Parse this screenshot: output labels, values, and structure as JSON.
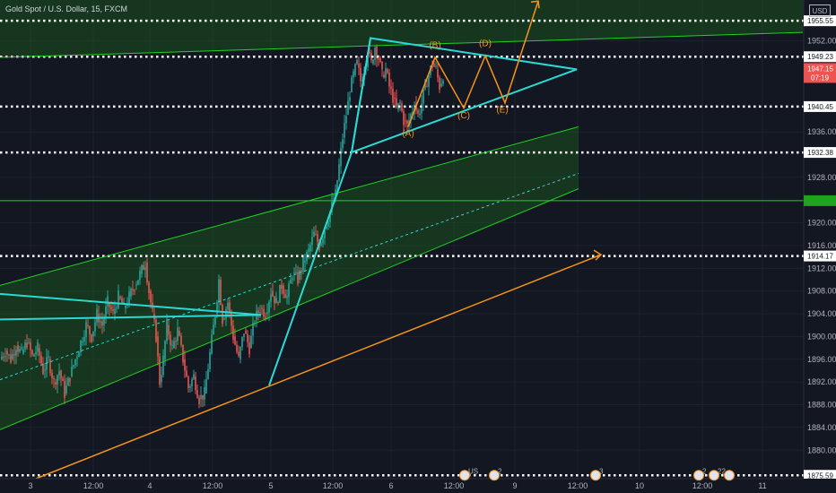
{
  "header": {
    "title": "Gold Spot / U.S. Dollar, 15, FXCM",
    "currency": "USD"
  },
  "colors": {
    "background": "#131722",
    "grid": "#1e222d",
    "candle_up": "#26a69a",
    "candle_down": "#ef5350",
    "channel": "#1fd21f",
    "triangle": "#2bd9d2",
    "orange": "#f7931a",
    "level": "#ffffff",
    "price_tag": "#ef5350",
    "green_tag": "#1fa31f",
    "text": "#b2b5be"
  },
  "chart_data": {
    "type": "candlestick",
    "symbol": "XAUUSD",
    "interval": "15",
    "source": "FXCM",
    "ylim": [
      1875.0,
      1959.2
    ],
    "x_tick_labels": [
      "3",
      "12:00",
      "4",
      "12:00",
      "5",
      "12:00",
      "6",
      "12:00",
      "9",
      "12:00",
      "10",
      "12:00",
      "11"
    ],
    "y_tick_labels": [
      1880.0,
      1884.0,
      1888.0,
      1892.0,
      1896.0,
      1900.0,
      1904.0,
      1908.0,
      1912.0,
      1916.0,
      1920.0,
      1928.0,
      1936.0,
      1952.0
    ],
    "price_levels": [
      1955.55,
      1949.23,
      1940.45,
      1932.38,
      1914.17,
      1875.59
    ],
    "current_price": 1947.15,
    "countdown": "07:19",
    "green_level": 1923.9,
    "close_path": [
      [
        0,
        1896
      ],
      [
        6,
        1897.5
      ],
      [
        12,
        1896
      ],
      [
        18,
        1898.5
      ],
      [
        24,
        1897
      ],
      [
        30,
        1899
      ],
      [
        36,
        1896.5
      ],
      [
        42,
        1898
      ],
      [
        48,
        1894
      ],
      [
        54,
        1896
      ],
      [
        60,
        1892
      ],
      [
        66,
        1894
      ],
      [
        72,
        1890
      ],
      [
        78,
        1893
      ],
      [
        84,
        1896
      ],
      [
        90,
        1899
      ],
      [
        96,
        1902
      ],
      [
        102,
        1900
      ],
      [
        108,
        1904
      ],
      [
        114,
        1902
      ],
      [
        120,
        1906
      ],
      [
        126,
        1904
      ],
      [
        132,
        1907
      ],
      [
        138,
        1905
      ],
      [
        144,
        1907
      ],
      [
        150,
        1909
      ],
      [
        156,
        1911
      ],
      [
        162,
        1913
      ],
      [
        166,
        1908
      ],
      [
        170,
        1904
      ],
      [
        174,
        1900
      ],
      [
        178,
        1892
      ],
      [
        182,
        1896
      ],
      [
        186,
        1902
      ],
      [
        192,
        1898
      ],
      [
        198,
        1901
      ],
      [
        204,
        1896
      ],
      [
        210,
        1891
      ],
      [
        216,
        1893
      ],
      [
        222,
        1889
      ],
      [
        228,
        1890
      ],
      [
        234,
        1897
      ],
      [
        240,
        1904
      ],
      [
        244,
        1910
      ],
      [
        248,
        1903
      ],
      [
        254,
        1906
      ],
      [
        260,
        1900
      ],
      [
        266,
        1896
      ],
      [
        272,
        1901
      ],
      [
        278,
        1898
      ],
      [
        284,
        1903
      ],
      [
        290,
        1905
      ],
      [
        296,
        1904
      ],
      [
        302,
        1908
      ],
      [
        308,
        1906
      ],
      [
        314,
        1909
      ],
      [
        320,
        1907
      ],
      [
        326,
        1911
      ],
      [
        332,
        1910
      ],
      [
        338,
        1913
      ],
      [
        344,
        1915
      ],
      [
        350,
        1918
      ],
      [
        356,
        1916
      ],
      [
        362,
        1919
      ],
      [
        368,
        1922
      ],
      [
        374,
        1925
      ],
      [
        378,
        1930
      ],
      [
        382,
        1935
      ],
      [
        386,
        1939
      ],
      [
        390,
        1943
      ],
      [
        394,
        1946
      ],
      [
        398,
        1948
      ],
      [
        402,
        1945
      ],
      [
        406,
        1947
      ],
      [
        410,
        1950
      ],
      [
        414,
        1948
      ],
      [
        418,
        1951
      ],
      [
        422,
        1949
      ],
      [
        426,
        1946
      ],
      [
        430,
        1947
      ],
      [
        434,
        1944
      ],
      [
        438,
        1942
      ],
      [
        442,
        1940
      ],
      [
        446,
        1941
      ],
      [
        450,
        1938
      ],
      [
        454,
        1937
      ],
      [
        458,
        1939
      ],
      [
        462,
        1941
      ],
      [
        466,
        1939
      ],
      [
        470,
        1941
      ],
      [
        474,
        1944
      ],
      [
        478,
        1946
      ],
      [
        482,
        1948
      ],
      [
        486,
        1947
      ],
      [
        490,
        1944
      ],
      [
        494,
        1946
      ]
    ],
    "ellipse_triangle": [
      [
        413,
        1952.5
      ],
      [
        643,
        1947.0
      ],
      [
        392,
        1932.4
      ]
    ],
    "falling_wedge_lines": [
      [
        [
          0,
          1907.5
        ],
        [
          291,
          1903.8
        ]
      ],
      [
        [
          0,
          1903.0
        ],
        [
          291,
          1903.8
        ]
      ]
    ],
    "trend_line_up": [
      [
        300,
        1891.4
      ],
      [
        392,
        1932.4
      ],
      [
        413,
        1952.5
      ]
    ],
    "orange_support": [
      [
        40,
        1875.0
      ],
      [
        670,
        1914.4
      ]
    ],
    "green_upper_channel": [
      [
        0,
        1949.1
      ],
      [
        895,
        1953.5
      ]
    ],
    "green_channel": {
      "top": [
        [
          0,
          1909.0
        ],
        [
          645,
          1936.9
        ]
      ],
      "mid": [
        [
          0,
          1892.4
        ],
        [
          645,
          1928.7
        ]
      ],
      "bottom": [
        [
          0,
          1883.6
        ],
        [
          645,
          1926.0
        ]
      ]
    },
    "wave_path": [
      [
        455,
        1936.9
      ],
      [
        485,
        1949.1
      ],
      [
        517,
        1940.2
      ],
      [
        541,
        1949.4
      ],
      [
        563,
        1941.1
      ],
      [
        600,
        1959.0
      ]
    ],
    "wave_labels": [
      {
        "label": "(A)",
        "x": 455,
        "price": 1935.2
      },
      {
        "label": "(B)",
        "x": 485,
        "price": 1950.8
      },
      {
        "label": "(C)",
        "x": 517,
        "price": 1938.4
      },
      {
        "label": "(D)",
        "x": 541,
        "price": 1951.1
      },
      {
        "label": "(E)",
        "x": 560,
        "price": 1939.4
      }
    ]
  },
  "event_badges": [
    "US",
    "2",
    "3",
    "2",
    "22"
  ]
}
